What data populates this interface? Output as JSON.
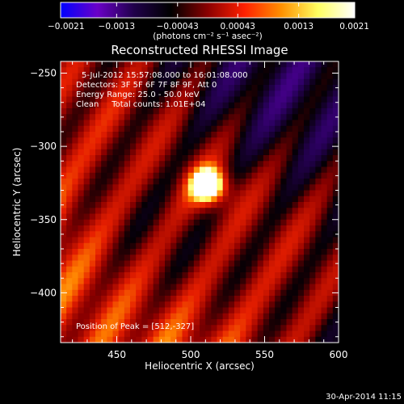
{
  "chart_data": {
    "type": "heatmap",
    "title": "Reconstructed RHESSI Image",
    "xlabel": "Heliocentric X (arcsec)",
    "ylabel": "Heliocentric Y (arcsec)",
    "xlim": [
      412,
      600
    ],
    "ylim": [
      -434,
      -242
    ],
    "x_ticks": [
      450,
      500,
      550,
      600
    ],
    "x_tick_labels": [
      "450",
      "500",
      "550",
      "600"
    ],
    "y_ticks": [
      -250,
      -300,
      -350,
      -400
    ],
    "y_tick_labels": [
      "−250",
      "−300",
      "−350",
      "−400"
    ],
    "colorbar": {
      "range": [
        -0.0021,
        0.0021
      ],
      "ticks": [
        -0.0021,
        -0.0013,
        -0.00043,
        0.00043,
        0.0013,
        0.0021
      ],
      "tick_labels": [
        "−0.0021",
        "−0.0013",
        "−0.00043",
        "0.00043",
        "0.0013",
        "0.0021"
      ],
      "units_label": "(photons cm⁻² s⁻¹ asec⁻²)",
      "colormap": [
        "#0000ff",
        "#6a00c8",
        "#20004a",
        "#000000",
        "#8a0000",
        "#ff2000",
        "#ff9000",
        "#ffff60",
        "#ffffff"
      ]
    },
    "peak": {
      "x": 512,
      "y": -327
    },
    "annotations": {
      "time_range": "5-Jul-2012 15:57:08.000 to 16:01:08.000",
      "detectors": "Detectors: 3F 5F 6F 7F 8F 9F, Att 0",
      "energy_range": "Energy Range: 25.0 - 50.0 keV",
      "method": "Clean     Total counts: 1.01E+04",
      "peak_label": "Position of Peak = [512,-327]"
    },
    "timestamp": "30-Apr-2014 11:15"
  }
}
